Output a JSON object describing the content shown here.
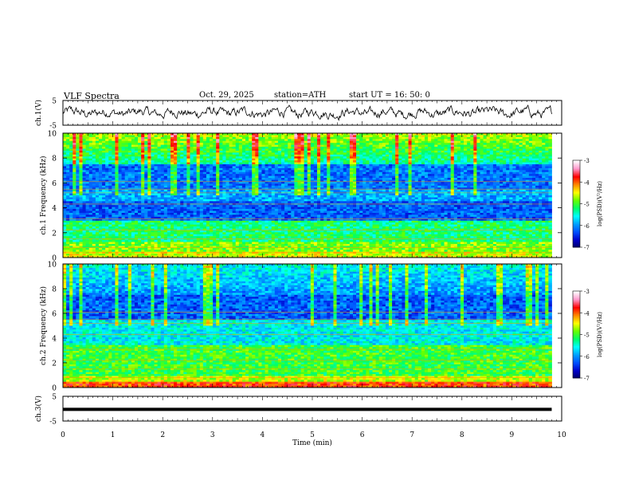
{
  "header": {
    "title": "VLF  Spectra",
    "date": "Oct. 29, 2025",
    "station": "station=ATH",
    "start": "start  UT  =   16: 50: 0"
  },
  "colors": {
    "colormap": [
      "#000066",
      "#0000cc",
      "#0050ff",
      "#00a0ff",
      "#00ffff",
      "#00ff66",
      "#66ff00",
      "#ffff00",
      "#ff8800",
      "#ff0000",
      "#ff99cc",
      "#ffffff"
    ]
  },
  "chart_data": [
    {
      "type": "line",
      "panel": "ch1-waveform",
      "ylabel": "ch.1(V)",
      "ylim": [
        -5,
        5
      ],
      "ytick_labels": [
        "5",
        "-5"
      ],
      "xlim": [
        0,
        10
      ],
      "data_end_min": 9.8,
      "description": "noisy waveform oscillating around ~0 V"
    },
    {
      "type": "heatmap",
      "panel": "ch1-spectrogram",
      "ylabel": "ch.1 Frequency  (kHz)",
      "ylim": [
        0,
        10
      ],
      "ytick_labels": [
        "0",
        "2",
        "4",
        "6",
        "8",
        "10"
      ],
      "xlim": [
        0,
        10
      ],
      "colorbar": {
        "label": "log(PSD)(V²/Hz)",
        "range": [
          -7,
          -3
        ],
        "tick_labels": [
          "-3",
          "-4",
          "-5",
          "-6",
          "-7"
        ]
      }
    },
    {
      "type": "heatmap",
      "panel": "ch2-spectrogram",
      "ylabel": "ch.2 Frequency  (kHz)",
      "ylim": [
        0,
        10
      ],
      "ytick_labels": [
        "0",
        "2",
        "4",
        "6",
        "8",
        "10"
      ],
      "xlim": [
        0,
        10
      ],
      "colorbar": {
        "label": "log(PSD)(V²/Hz)",
        "range": [
          -7,
          -3
        ],
        "tick_labels": [
          "-3",
          "-4",
          "-5",
          "-6",
          "-7"
        ]
      }
    },
    {
      "type": "line",
      "panel": "ch3-waveform",
      "ylabel": "ch.3(V)",
      "ylim": [
        -5,
        5
      ],
      "ytick_labels": [
        "5",
        "-5"
      ],
      "xlim": [
        0,
        10
      ],
      "constant_value": -0.3,
      "description": "flat thick trace just below 0 V"
    }
  ],
  "xaxis": {
    "label": "Time  (min)",
    "tick_labels": [
      "0",
      "1",
      "2",
      "3",
      "4",
      "5",
      "6",
      "7",
      "8",
      "9",
      "10"
    ]
  }
}
